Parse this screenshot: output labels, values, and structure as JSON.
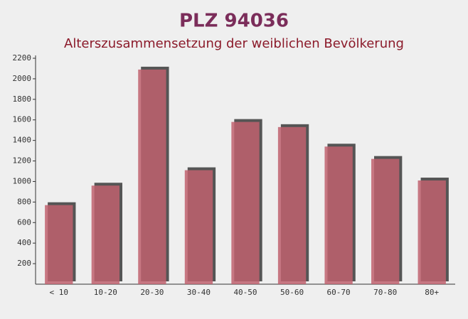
{
  "chart_data": {
    "type": "bar",
    "title": "PLZ 94036",
    "subtitle": "Alterszusammensetzung der weiblichen Bevölkerung",
    "categories": [
      "< 10",
      "10-20",
      "20-30",
      "30-40",
      "40-50",
      "50-60",
      "60-70",
      "70-80",
      "80+"
    ],
    "values": [
      770,
      960,
      2090,
      1110,
      1580,
      1530,
      1340,
      1220,
      1010
    ],
    "color": "#c0626e",
    "ylim": [
      0,
      2200
    ],
    "yticks": [
      200,
      400,
      600,
      800,
      1000,
      1200,
      1400,
      1600,
      1800,
      2000,
      2200
    ]
  }
}
